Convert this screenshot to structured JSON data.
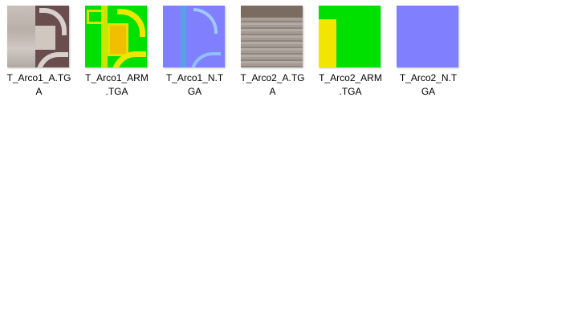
{
  "files": [
    {
      "name": "T_Arco1_A.TGA",
      "line1": "T_Arco1_A.TG",
      "line2": "A",
      "kind": "albedo1",
      "color": "#6b5050"
    },
    {
      "name": "T_Arco1_ARM.TGA",
      "line1": "T_Arco1_ARM",
      "line2": ".TGA",
      "kind": "arm1",
      "color": "#00e000"
    },
    {
      "name": "T_Arco1_N.TGA",
      "line1": "T_Arco1_N.T",
      "line2": "GA",
      "kind": "normal1",
      "color": "#7f7fff"
    },
    {
      "name": "T_Arco2_A.TGA",
      "line1": "T_Arco2_A.TG",
      "line2": "A",
      "kind": "albedo2",
      "color": "#9c918a"
    },
    {
      "name": "T_Arco2_ARM.TGA",
      "line1": "T_Arco2_ARM",
      "line2": ".TGA",
      "kind": "arm2",
      "color": "#00e000"
    },
    {
      "name": "T_Arco2_N.TGA",
      "line1": "T_Arco2_N.T",
      "line2": "GA",
      "kind": "normal2",
      "color": "#8080ff"
    }
  ]
}
